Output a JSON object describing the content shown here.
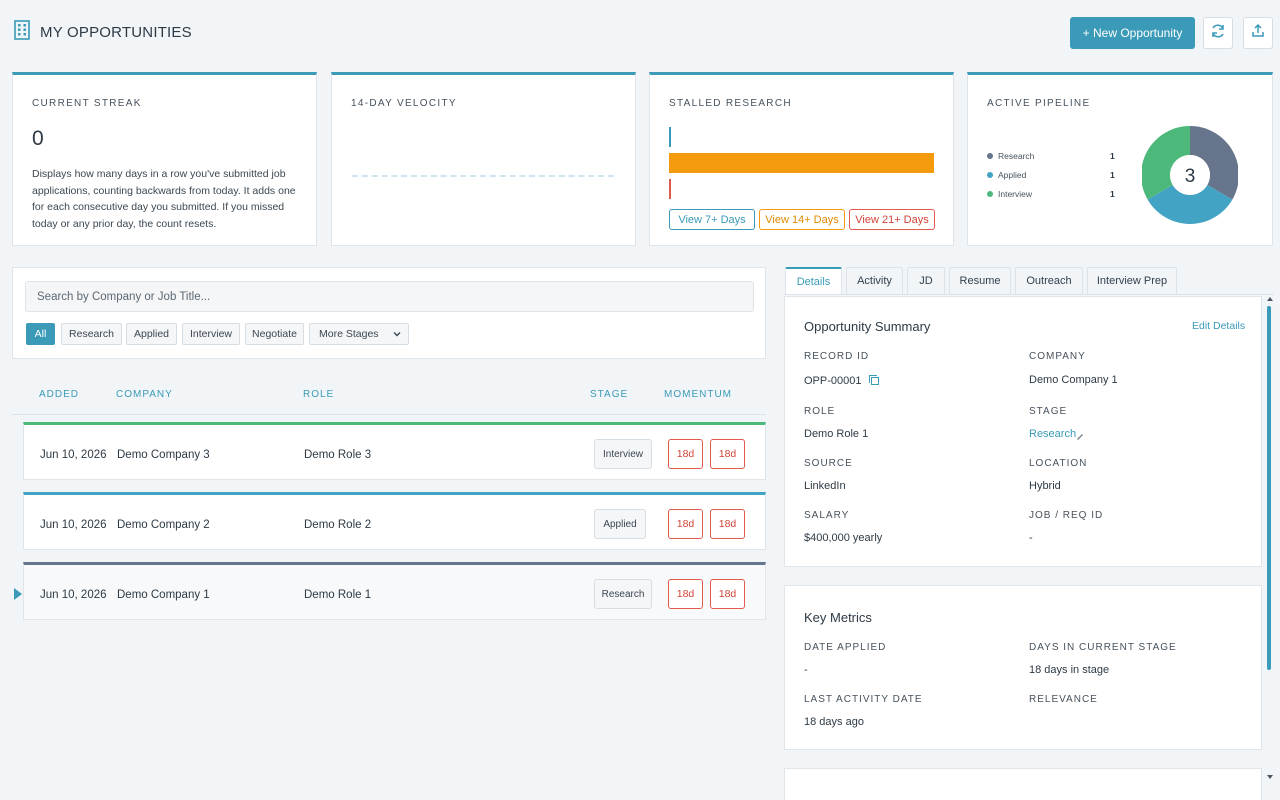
{
  "header": {
    "title": "MY OPPORTUNITIES",
    "new_button": "+ New Opportunity",
    "icons": [
      "building-icon",
      "refresh-icon",
      "export-icon"
    ]
  },
  "stats": {
    "streak": {
      "label": "CURRENT STREAK",
      "value": "0",
      "description": "Displays how many days in a row you've submitted job applications, counting backwards from today. It adds one for each consecutive day you submitted. If you missed today or any prior day, the count resets."
    },
    "velocity": {
      "label": "14-DAY VELOCITY"
    },
    "stalled": {
      "label": "STALLED RESEARCH",
      "buttons": [
        "View 7+ Days",
        "View 14+ Days",
        "View 21+ Days"
      ]
    },
    "pipeline": {
      "label": "ACTIVE PIPELINE",
      "total": "3",
      "legend": [
        {
          "name": "Research",
          "count": "1",
          "color": "#67758c"
        },
        {
          "name": "Applied",
          "count": "1",
          "color": "#42a3c4"
        },
        {
          "name": "Interview",
          "count": "1",
          "color": "#4cb97a"
        }
      ]
    }
  },
  "filters": {
    "search_placeholder": "Search by Company or Job Title...",
    "chips": [
      "All",
      "Research",
      "Applied",
      "Interview",
      "Negotiate"
    ],
    "more_stages": "More Stages"
  },
  "table": {
    "headers": [
      "ADDED",
      "COMPANY",
      "ROLE",
      "STAGE",
      "MOMENTUM"
    ],
    "rows": [
      {
        "added": "Jun 10, 2026",
        "company": "Demo Company 3",
        "role": "Demo Role 3",
        "stage": "Interview",
        "momentum": [
          "18d",
          "18d"
        ],
        "accent": "#4cb97a"
      },
      {
        "added": "Jun 10, 2026",
        "company": "Demo Company 2",
        "role": "Demo Role 2",
        "stage": "Applied",
        "momentum": [
          "18d",
          "18d"
        ],
        "accent": "#42a3c4"
      },
      {
        "added": "Jun 10, 2026",
        "company": "Demo Company 1",
        "role": "Demo Role 1",
        "stage": "Research",
        "momentum": [
          "18d",
          "18d"
        ],
        "accent": "#67758c"
      }
    ]
  },
  "details": {
    "tabs": [
      "Details",
      "Activity",
      "JD",
      "Resume",
      "Outreach",
      "Interview Prep"
    ],
    "summary": {
      "title": "Opportunity Summary",
      "edit": "Edit Details",
      "record_id_label": "RECORD ID",
      "record_id": "OPP-00001",
      "company_label": "COMPANY",
      "company": "Demo Company 1",
      "role_label": "ROLE",
      "role": "Demo Role 1",
      "stage_label": "STAGE",
      "stage": "Research",
      "source_label": "SOURCE",
      "source": "LinkedIn",
      "location_label": "LOCATION",
      "location": "Hybrid",
      "salary_label": "SALARY",
      "salary": "$400,000 yearly",
      "job_id_label": "JOB / REQ ID",
      "job_id": "-"
    },
    "metrics": {
      "title": "Key Metrics",
      "date_applied_label": "DATE APPLIED",
      "date_applied": "-",
      "days_in_stage_label": "DAYS IN CURRENT STAGE",
      "days_in_stage": "18 days in stage",
      "last_activity_label": "LAST ACTIVITY DATE",
      "last_activity": "18 days ago",
      "relevance_label": "RELEVANCE"
    }
  },
  "colors": {
    "accent": "#3a9ab8",
    "warning": "#f39a0d",
    "danger": "#e05a4e"
  }
}
